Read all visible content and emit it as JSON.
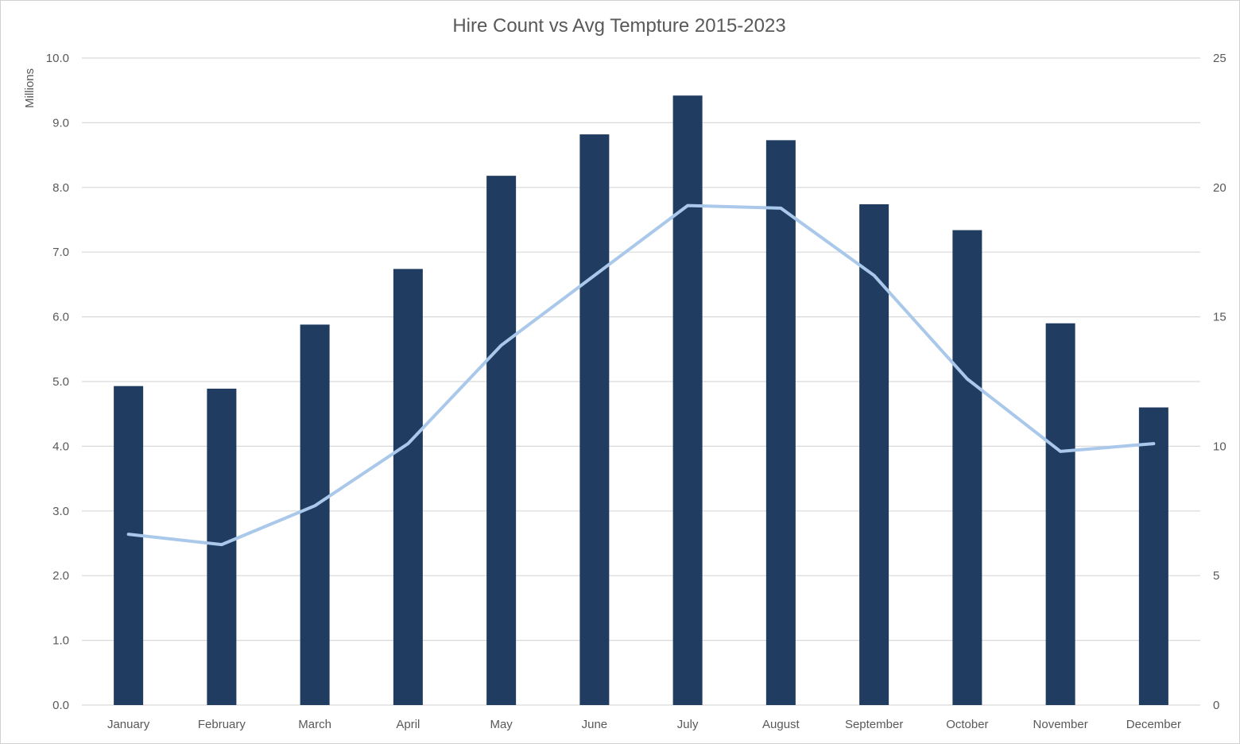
{
  "chart_data": {
    "type": "bar",
    "title": "Hire Count vs Avg Tempture 2015-2023",
    "categories": [
      "January",
      "February",
      "March",
      "April",
      "May",
      "June",
      "July",
      "August",
      "September",
      "October",
      "November",
      "December"
    ],
    "series": [
      {
        "chart_type": "bar",
        "axis": "left",
        "color": "#203c61",
        "values": [
          4.93,
          4.89,
          5.88,
          6.74,
          8.18,
          8.82,
          9.42,
          8.73,
          7.74,
          7.34,
          5.9,
          4.6
        ]
      },
      {
        "chart_type": "line",
        "axis": "right",
        "color": "#a9c8ea",
        "values": [
          6.6,
          6.2,
          7.7,
          10.1,
          13.9,
          16.6,
          19.3,
          19.2,
          16.6,
          12.6,
          9.8,
          10.1
        ]
      }
    ],
    "y_left": {
      "label": "Millions",
      "ylim": [
        0,
        10
      ],
      "ticks": [
        "0.0",
        "1.0",
        "2.0",
        "3.0",
        "4.0",
        "5.0",
        "6.0",
        "7.0",
        "8.0",
        "9.0",
        "10.0"
      ]
    },
    "y_right": {
      "ylim": [
        0,
        25
      ],
      "ticks": [
        "0",
        "5",
        "10",
        "15",
        "20",
        "25"
      ]
    },
    "grid": true,
    "legend": "none"
  }
}
